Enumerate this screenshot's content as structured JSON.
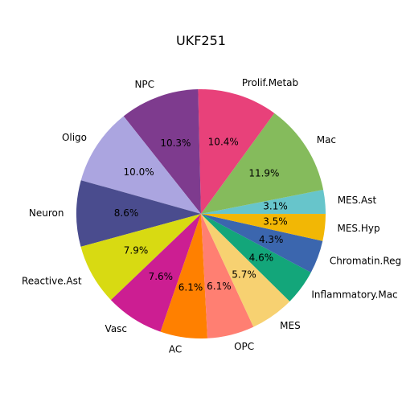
{
  "chart_data": {
    "type": "pie",
    "title": "UKF251",
    "start_angle_deg": 0,
    "direction": "counterclockwise",
    "slices": [
      {
        "label": "MES.Ast",
        "value": 3.1,
        "pct_label": "3.1%",
        "color": "#67C5CB"
      },
      {
        "label": "Mac",
        "value": 11.9,
        "pct_label": "11.9%",
        "color": "#85BB5C"
      },
      {
        "label": "Prolif.Metab",
        "value": 10.4,
        "pct_label": "10.4%",
        "color": "#E8417A"
      },
      {
        "label": "NPC",
        "value": 10.3,
        "pct_label": "10.3%",
        "color": "#7E3B8E"
      },
      {
        "label": "Oligo",
        "value": 10.0,
        "pct_label": "10.0%",
        "color": "#ABA5E0"
      },
      {
        "label": "Neuron",
        "value": 8.6,
        "pct_label": "8.6%",
        "color": "#4A4C8E"
      },
      {
        "label": "Reactive.Ast",
        "value": 7.9,
        "pct_label": "7.9%",
        "color": "#D8DA12"
      },
      {
        "label": "Vasc",
        "value": 7.6,
        "pct_label": "7.6%",
        "color": "#CC1E92"
      },
      {
        "label": "AC",
        "value": 6.1,
        "pct_label": "6.1%",
        "color": "#FF8000"
      },
      {
        "label": "OPC",
        "value": 6.1,
        "pct_label": "6.1%",
        "color": "#FF7F72"
      },
      {
        "label": "MES",
        "value": 5.7,
        "pct_label": "5.7%",
        "color": "#F7D171"
      },
      {
        "label": "Inflammatory.Mac",
        "value": 4.6,
        "pct_label": "4.6%",
        "color": "#13A67A"
      },
      {
        "label": "Chromatin.Reg",
        "value": 4.3,
        "pct_label": "4.3%",
        "color": "#3B66AE"
      },
      {
        "label": "MES.Hyp",
        "value": 3.5,
        "pct_label": "3.5%",
        "color": "#F2B705"
      }
    ]
  }
}
